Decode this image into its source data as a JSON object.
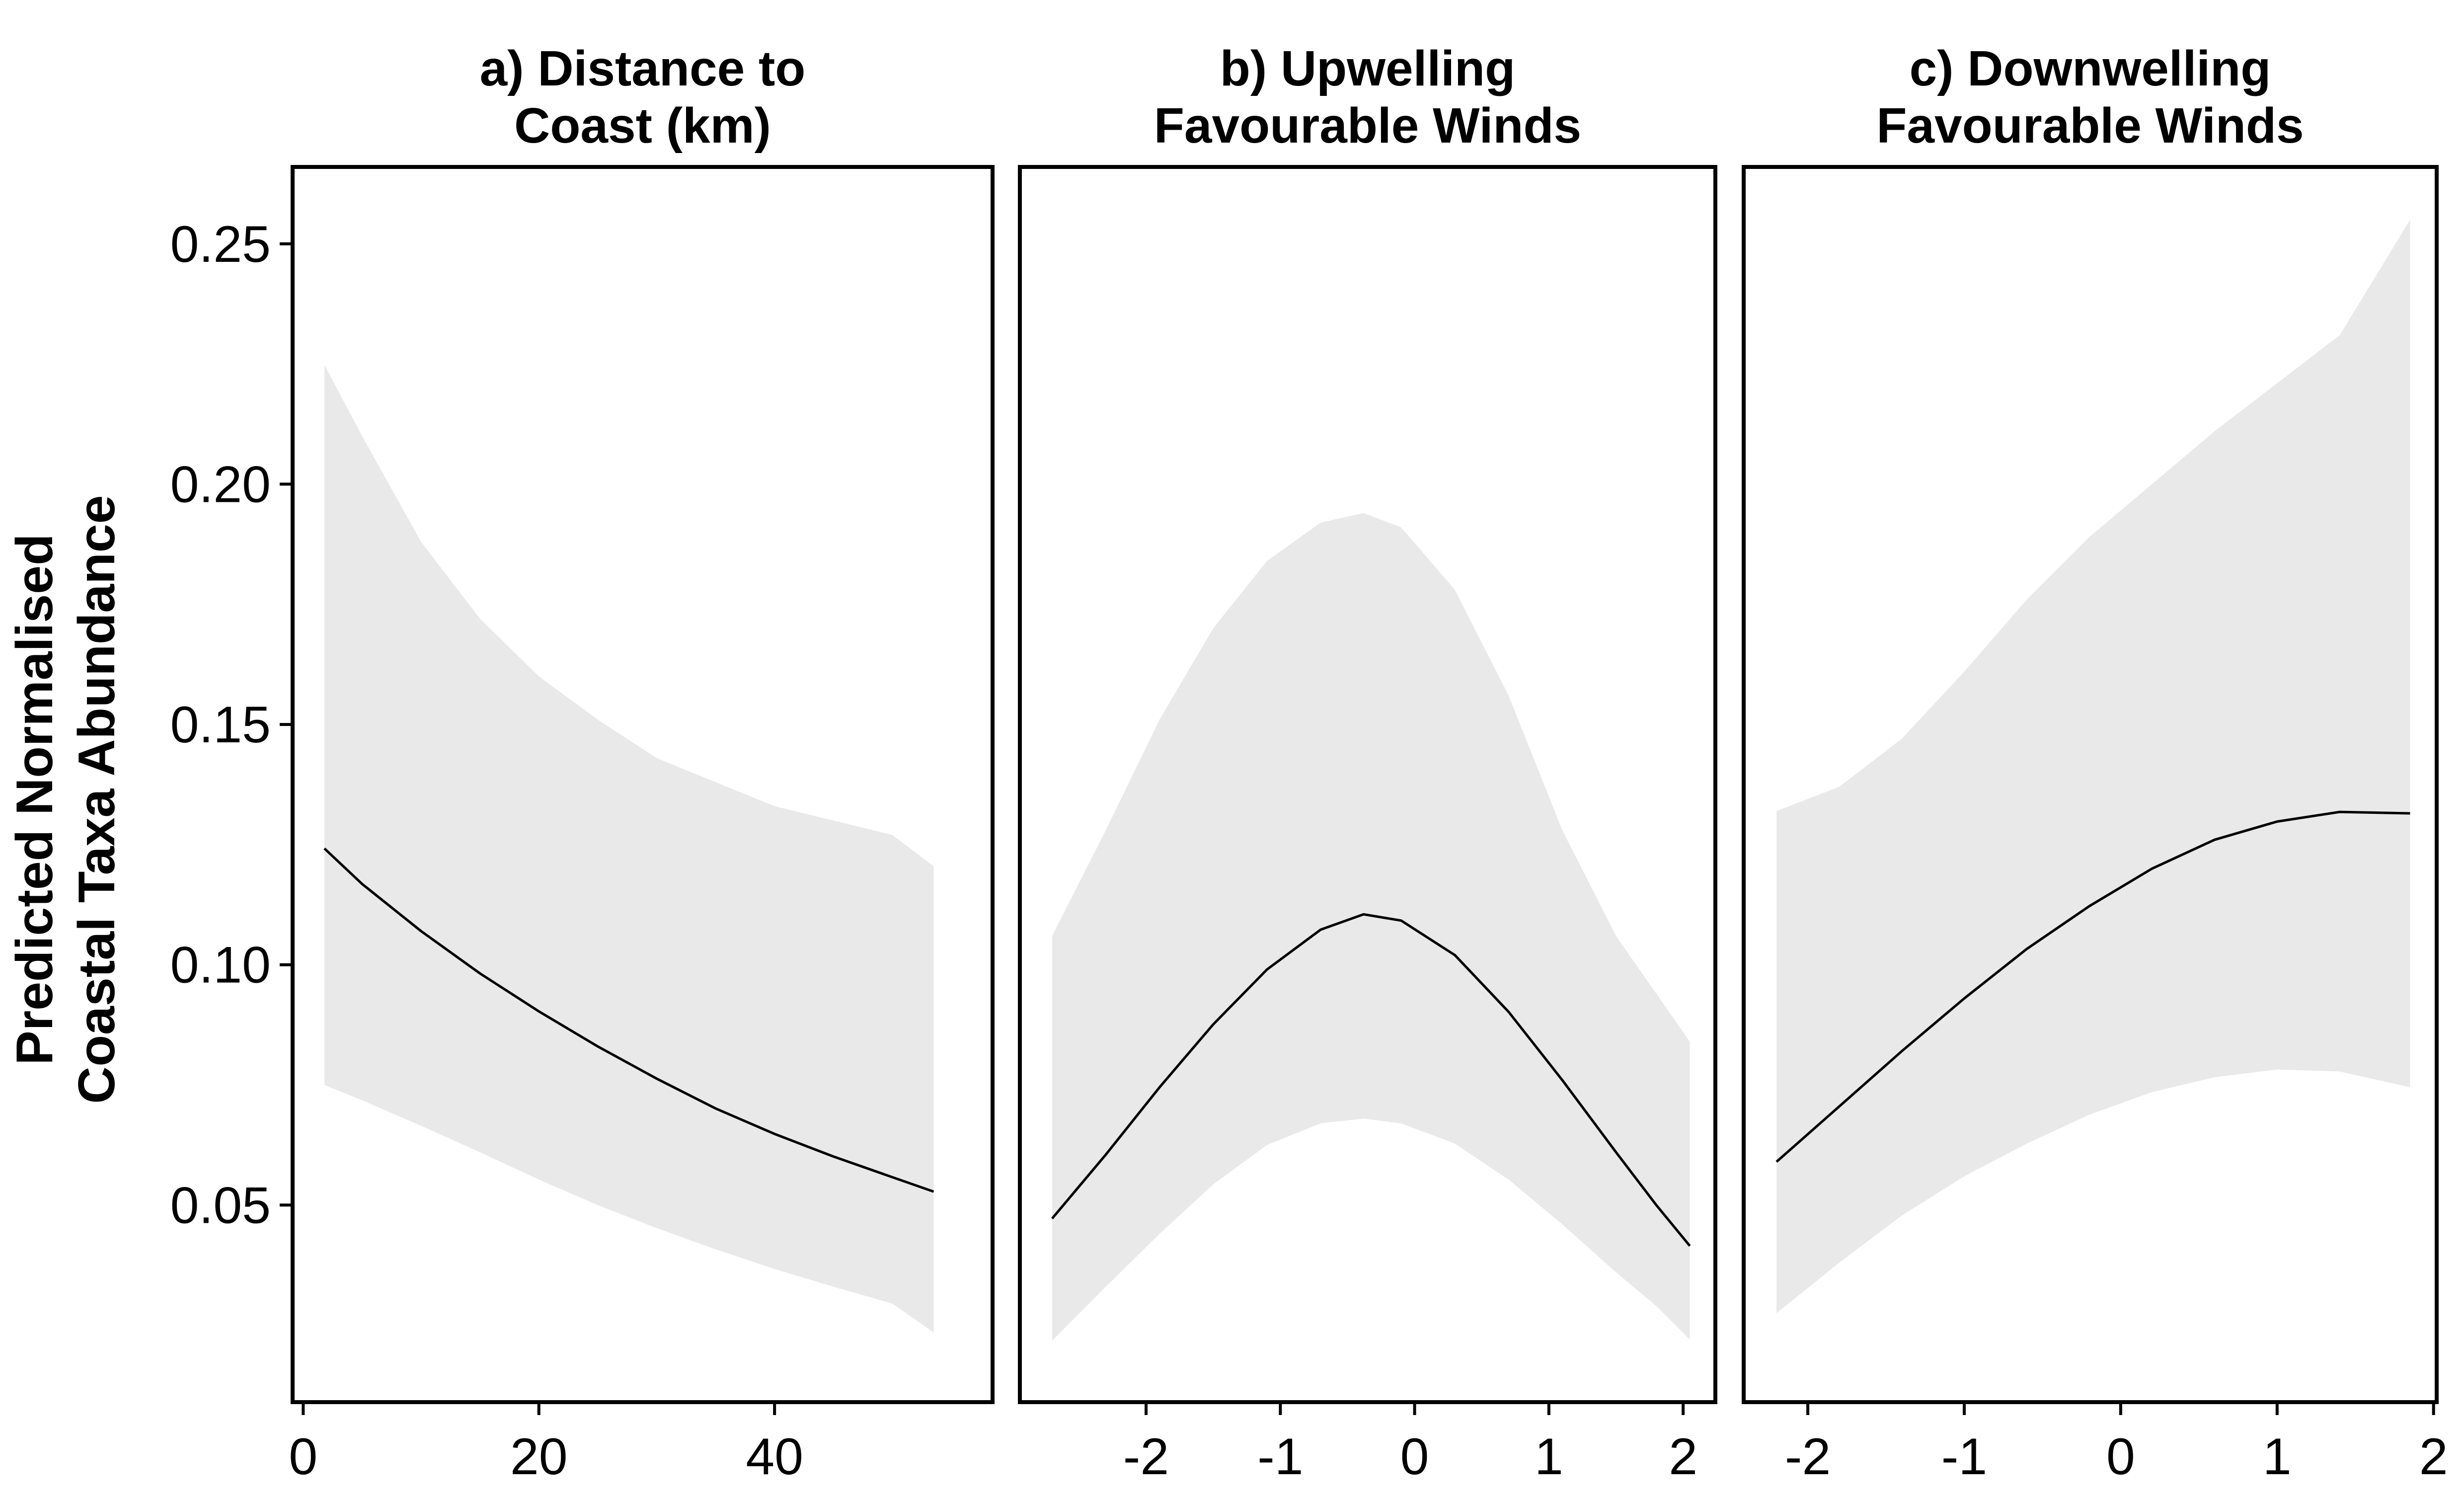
{
  "chart_data": {
    "type": "line",
    "ylabel": [
      "Predicted Normalised",
      "Coastal Taxa Abundance"
    ],
    "ylim": [
      0.009,
      0.266
    ],
    "y_ticks": [
      {
        "value": 0.05,
        "label": "0.05"
      },
      {
        "value": 0.1,
        "label": "0.10"
      },
      {
        "value": 0.15,
        "label": "0.15"
      },
      {
        "value": 0.2,
        "label": "0.20"
      },
      {
        "value": 0.25,
        "label": "0.25"
      }
    ],
    "grid": false,
    "band_color": "#e9e9e9",
    "line_color": "#000000",
    "panels": [
      {
        "title": [
          "a) Distance to",
          "Coast (km)"
        ],
        "xlim": [
          -0.9,
          58.5
        ],
        "x_ticks": [
          {
            "value": 0,
            "label": "0"
          },
          {
            "value": 20,
            "label": "20"
          },
          {
            "value": 40,
            "label": "40"
          }
        ],
        "x": [
          1.8,
          5,
          10,
          15,
          20,
          25,
          30,
          35,
          40,
          45,
          50,
          53.5
        ],
        "fit": [
          0.1242,
          0.1168,
          0.107,
          0.0982,
          0.0903,
          0.083,
          0.0763,
          0.0701,
          0.0648,
          0.0601,
          0.0558,
          0.0528
        ],
        "lower": [
          0.075,
          0.0718,
          0.0665,
          0.061,
          0.0553,
          0.05,
          0.0452,
          0.0408,
          0.0367,
          0.033,
          0.0295,
          0.0235
        ],
        "upper": [
          0.2248,
          0.21,
          0.188,
          0.172,
          0.16,
          0.151,
          0.143,
          0.138,
          0.133,
          0.13,
          0.127,
          0.1205
        ]
      },
      {
        "title": [
          "b) Upwelling",
          "Favourable Winds"
        ],
        "xlim": [
          -2.94,
          2.24
        ],
        "x_ticks": [
          {
            "value": -2,
            "label": "-2"
          },
          {
            "value": -1,
            "label": "-1"
          },
          {
            "value": 0,
            "label": "0"
          },
          {
            "value": 1,
            "label": "1"
          },
          {
            "value": 2,
            "label": "2"
          }
        ],
        "x": [
          -2.7,
          -2.3,
          -1.9,
          -1.5,
          -1.1,
          -0.7,
          -0.38,
          -0.1,
          0.3,
          0.7,
          1.1,
          1.5,
          1.8,
          2.05
        ],
        "fit": [
          0.0472,
          0.0605,
          0.0745,
          0.0876,
          0.099,
          0.1073,
          0.1105,
          0.1092,
          0.102,
          0.0902,
          0.076,
          0.061,
          0.05,
          0.0415
        ],
        "lower": [
          0.0218,
          0.033,
          0.044,
          0.0543,
          0.0625,
          0.067,
          0.068,
          0.067,
          0.0628,
          0.0553,
          0.046,
          0.036,
          0.029,
          0.022
        ],
        "upper": [
          0.106,
          0.128,
          0.151,
          0.17,
          0.184,
          0.192,
          0.194,
          0.191,
          0.178,
          0.156,
          0.128,
          0.106,
          0.094,
          0.084
        ]
      },
      {
        "title": [
          "c) Downwelling",
          "Favourable Winds"
        ],
        "xlim": [
          -2.41,
          2.02
        ],
        "x_ticks": [
          {
            "value": -2,
            "label": "-2"
          },
          {
            "value": -1,
            "label": "-1"
          },
          {
            "value": 0,
            "label": "0"
          },
          {
            "value": 1,
            "label": "1"
          },
          {
            "value": 2,
            "label": "2"
          }
        ],
        "x": [
          -2.2,
          -1.8,
          -1.4,
          -1.0,
          -0.6,
          -0.2,
          0.2,
          0.6,
          1.0,
          1.4,
          1.85
        ],
        "fit": [
          0.059,
          0.0705,
          0.082,
          0.093,
          0.1033,
          0.1122,
          0.12,
          0.126,
          0.1298,
          0.1318,
          0.1315
        ],
        "lower": [
          0.0275,
          0.038,
          0.0478,
          0.056,
          0.0628,
          0.0688,
          0.0735,
          0.0766,
          0.0782,
          0.0778,
          0.0745
        ],
        "upper": [
          0.132,
          0.137,
          0.147,
          0.161,
          0.176,
          0.189,
          0.2,
          0.211,
          0.221,
          0.231,
          0.255
        ]
      }
    ]
  }
}
